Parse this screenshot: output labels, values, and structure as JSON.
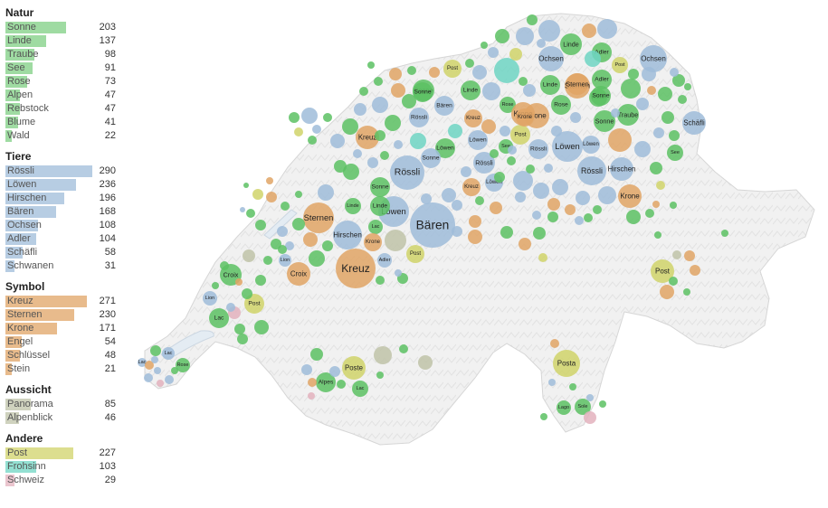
{
  "colors": {
    "Natur": "#7fcf83",
    "Tiere": "#9fbcd9",
    "Symbol": "#e0a465",
    "Aussicht": "#bfc3a8",
    "Andere": "#d0d36a",
    "Frohsinn": "#6fd5c3",
    "Schweiz": "#e3b1bd",
    "Green": "#5cc163"
  },
  "legend": [
    {
      "title": "Natur",
      "color": "#7fcf83",
      "items": [
        {
          "name": "Sonne",
          "count": 203
        },
        {
          "name": "Linde",
          "count": 137
        },
        {
          "name": "Traube",
          "count": 98
        },
        {
          "name": "See",
          "count": 91
        },
        {
          "name": "Rose",
          "count": 73
        },
        {
          "name": "Alpen",
          "count": 47
        },
        {
          "name": "Rebstock",
          "count": 47
        },
        {
          "name": "Blume",
          "count": 41
        },
        {
          "name": "Wald",
          "count": 22
        }
      ]
    },
    {
      "title": "Tiere",
      "color": "#9fbcd9",
      "items": [
        {
          "name": "Rössli",
          "count": 290
        },
        {
          "name": "Löwen",
          "count": 236
        },
        {
          "name": "Hirschen",
          "count": 196
        },
        {
          "name": "Bären",
          "count": 168
        },
        {
          "name": "Ochsen",
          "count": 108
        },
        {
          "name": "Adler",
          "count": 104
        },
        {
          "name": "Schäfli",
          "count": 58
        },
        {
          "name": "Schwanen",
          "count": 31
        }
      ]
    },
    {
      "title": "Symbol",
      "color": "#e0a465",
      "items": [
        {
          "name": "Kreuz",
          "count": 271
        },
        {
          "name": "Sternen",
          "count": 230
        },
        {
          "name": "Krone",
          "count": 171
        },
        {
          "name": "Engel",
          "count": 54
        },
        {
          "name": "Schlüssel",
          "count": 48
        },
        {
          "name": "Stein",
          "count": 21
        }
      ]
    },
    {
      "title": "Aussicht",
      "color": "#bfc3a8",
      "items": [
        {
          "name": "Panorama",
          "count": 85
        },
        {
          "name": "Alpenblick",
          "count": 46
        }
      ]
    },
    {
      "title": "Andere",
      "color": "#d0d36a",
      "items": [
        {
          "name": "Post",
          "count": 227
        },
        {
          "name": "Frohsinn",
          "count": 103,
          "color": "#6fd5c3"
        },
        {
          "name": "Schweiz",
          "count": 29,
          "color": "#e3b1bd"
        }
      ]
    }
  ],
  "map_labels": {
    "big_labels": [
      "Bären",
      "Kreuz",
      "Rössli",
      "Löwen",
      "Sternen",
      "Rössli",
      "Löwen",
      "Krone",
      "Post"
    ],
    "small_labels": [
      "Post",
      "Sonne",
      "Linde",
      "Ochsen",
      "Ochsen",
      "Linde",
      "Sternen",
      "Adler",
      "Rose",
      "Krone",
      "Sonne",
      "Schäfli",
      "Hirschen",
      "Kreuz",
      "Traube",
      "Croix",
      "Croix",
      "Lion",
      "Lion",
      "Lac",
      "Post",
      "Lac",
      "Lac",
      "Rose",
      "Alpes",
      "Lac",
      "Poste",
      "Posta",
      "Lago",
      "Sole",
      "Löwen",
      "Rössli",
      "Kreuz",
      "Rose",
      "See",
      "Linde",
      "Hirschen",
      "Lac",
      "Adler",
      "Krone",
      "Sonne",
      "Bären",
      "Löwen",
      "Rössli",
      "Post",
      "Sonne",
      "Rössli",
      "Löwen",
      "Linde",
      "Kreuz",
      "Post",
      "Krone",
      "Adler",
      "Sonne",
      "Rose",
      "Sonne",
      "Linde",
      "Sternen",
      "Post",
      "Löwen",
      "Krone",
      "See"
    ]
  }
}
